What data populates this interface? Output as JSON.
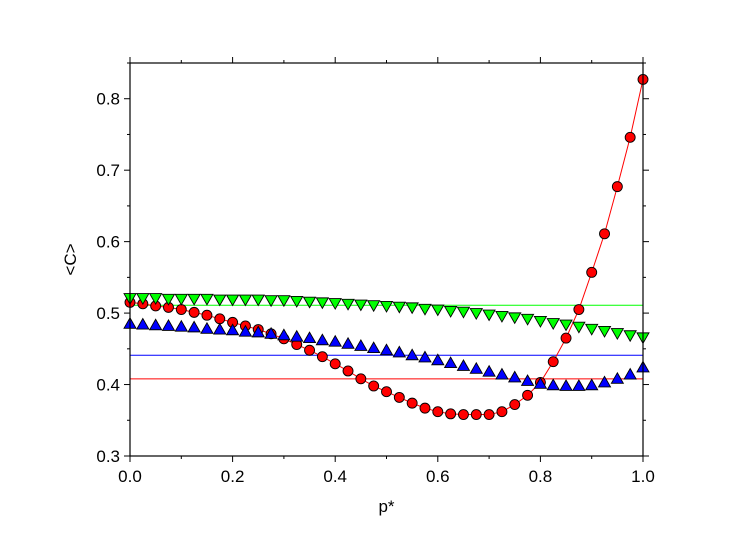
{
  "chart_data": {
    "type": "scatter",
    "xlabel": "p*",
    "ylabel": "<C>",
    "xlim": [
      0.0,
      1.0
    ],
    "ylim": [
      0.3,
      0.85
    ],
    "xticks": [
      "0.0",
      "0.2",
      "0.4",
      "0.6",
      "0.8",
      "1.0"
    ],
    "yticks": [
      "0.3",
      "0.4",
      "0.5",
      "0.6",
      "0.7",
      "0.8"
    ],
    "grid": false,
    "series": [
      {
        "marker": "circle",
        "color": "#ff0000",
        "line_color": "#ff0000",
        "connected": true,
        "x": [
          0.0,
          0.025,
          0.05,
          0.075,
          0.1,
          0.125,
          0.15,
          0.175,
          0.2,
          0.225,
          0.25,
          0.275,
          0.3,
          0.325,
          0.35,
          0.375,
          0.4,
          0.425,
          0.45,
          0.475,
          0.5,
          0.525,
          0.55,
          0.575,
          0.6,
          0.625,
          0.65,
          0.675,
          0.7,
          0.725,
          0.75,
          0.775,
          0.8,
          0.825,
          0.85,
          0.875,
          0.9,
          0.925,
          0.95,
          0.975,
          1.0
        ],
        "y": [
          0.515,
          0.513,
          0.51,
          0.508,
          0.505,
          0.501,
          0.497,
          0.492,
          0.487,
          0.482,
          0.477,
          0.471,
          0.464,
          0.456,
          0.448,
          0.439,
          0.429,
          0.419,
          0.408,
          0.398,
          0.39,
          0.382,
          0.374,
          0.367,
          0.362,
          0.359,
          0.358,
          0.358,
          0.358,
          0.362,
          0.372,
          0.385,
          0.403,
          0.432,
          0.465,
          0.505,
          0.557,
          0.611,
          0.677,
          0.746,
          0.827
        ]
      },
      {
        "marker": "triangle-up",
        "color": "#0000ff",
        "connected": false,
        "x": [
          0.0,
          0.025,
          0.05,
          0.075,
          0.1,
          0.125,
          0.15,
          0.175,
          0.2,
          0.225,
          0.25,
          0.275,
          0.3,
          0.325,
          0.35,
          0.375,
          0.4,
          0.425,
          0.45,
          0.475,
          0.5,
          0.525,
          0.55,
          0.575,
          0.6,
          0.625,
          0.65,
          0.675,
          0.7,
          0.725,
          0.75,
          0.775,
          0.8,
          0.825,
          0.85,
          0.875,
          0.9,
          0.925,
          0.95,
          0.975,
          1.0
        ],
        "y": [
          0.485,
          0.484,
          0.483,
          0.482,
          0.481,
          0.48,
          0.478,
          0.477,
          0.476,
          0.474,
          0.473,
          0.471,
          0.469,
          0.467,
          0.465,
          0.462,
          0.46,
          0.457,
          0.454,
          0.451,
          0.448,
          0.445,
          0.441,
          0.438,
          0.434,
          0.43,
          0.426,
          0.422,
          0.418,
          0.414,
          0.41,
          0.405,
          0.401,
          0.399,
          0.398,
          0.398,
          0.399,
          0.403,
          0.408,
          0.414,
          0.424
        ]
      },
      {
        "marker": "triangle-down",
        "color": "#00ff00",
        "connected": false,
        "x": [
          0.0,
          0.025,
          0.05,
          0.075,
          0.1,
          0.125,
          0.15,
          0.175,
          0.2,
          0.225,
          0.25,
          0.275,
          0.3,
          0.325,
          0.35,
          0.375,
          0.4,
          0.425,
          0.45,
          0.475,
          0.5,
          0.525,
          0.55,
          0.575,
          0.6,
          0.625,
          0.65,
          0.675,
          0.7,
          0.725,
          0.75,
          0.775,
          0.8,
          0.825,
          0.85,
          0.875,
          0.9,
          0.925,
          0.95,
          0.975,
          1.0
        ],
        "y": [
          0.521,
          0.521,
          0.521,
          0.52,
          0.52,
          0.52,
          0.52,
          0.519,
          0.519,
          0.519,
          0.519,
          0.518,
          0.518,
          0.517,
          0.516,
          0.515,
          0.514,
          0.513,
          0.512,
          0.511,
          0.51,
          0.509,
          0.508,
          0.506,
          0.505,
          0.503,
          0.502,
          0.5,
          0.498,
          0.496,
          0.494,
          0.492,
          0.489,
          0.486,
          0.484,
          0.481,
          0.478,
          0.475,
          0.472,
          0.469,
          0.466
        ]
      }
    ],
    "reference_lines": [
      {
        "y": 0.511,
        "color": "#00ff00"
      },
      {
        "y": 0.441,
        "color": "#0000ff"
      },
      {
        "y": 0.408,
        "color": "#ff0000"
      }
    ]
  }
}
